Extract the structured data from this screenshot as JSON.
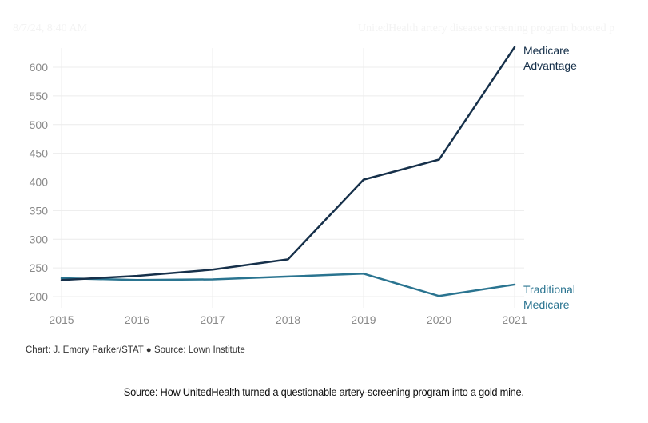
{
  "print_header": {
    "date": "8/7/24, 8:40 AM",
    "title": "UnitedHealth artery disease screening program boosted p"
  },
  "chart_data": {
    "type": "line",
    "title": "",
    "xlabel": "",
    "ylabel": "",
    "x": [
      2015,
      2016,
      2017,
      2018,
      2019,
      2020,
      2021
    ],
    "x_tick_labels": [
      "2015",
      "2016",
      "2017",
      "2018",
      "2019",
      "2020",
      "2021"
    ],
    "y_ticks": [
      200,
      250,
      300,
      350,
      400,
      450,
      500,
      550,
      600
    ],
    "y_tick_labels": [
      "200",
      "250",
      "300",
      "350",
      "400",
      "450",
      "500",
      "550",
      "600"
    ],
    "ylim": [
      185,
      640
    ],
    "grid": true,
    "legend": "direct labels at line ends (right)",
    "series": [
      {
        "name": "Medicare Advantage",
        "label_lines": [
          "Medicare",
          "Advantage"
        ],
        "color": "#16304a",
        "values": [
          229,
          236,
          247,
          265,
          404,
          439,
          635
        ]
      },
      {
        "name": "Traditional Medicare",
        "label_lines": [
          "Traditional",
          "Medicare"
        ],
        "color": "#2a7490",
        "values": [
          232,
          229,
          230,
          235,
          240,
          201,
          221
        ]
      }
    ]
  },
  "credit": "Chart: J. Emory Parker/STAT ● Source: Lown Institute",
  "source_caption": "Source: How UnitedHealth turned a questionable artery-screening program into a gold mine."
}
